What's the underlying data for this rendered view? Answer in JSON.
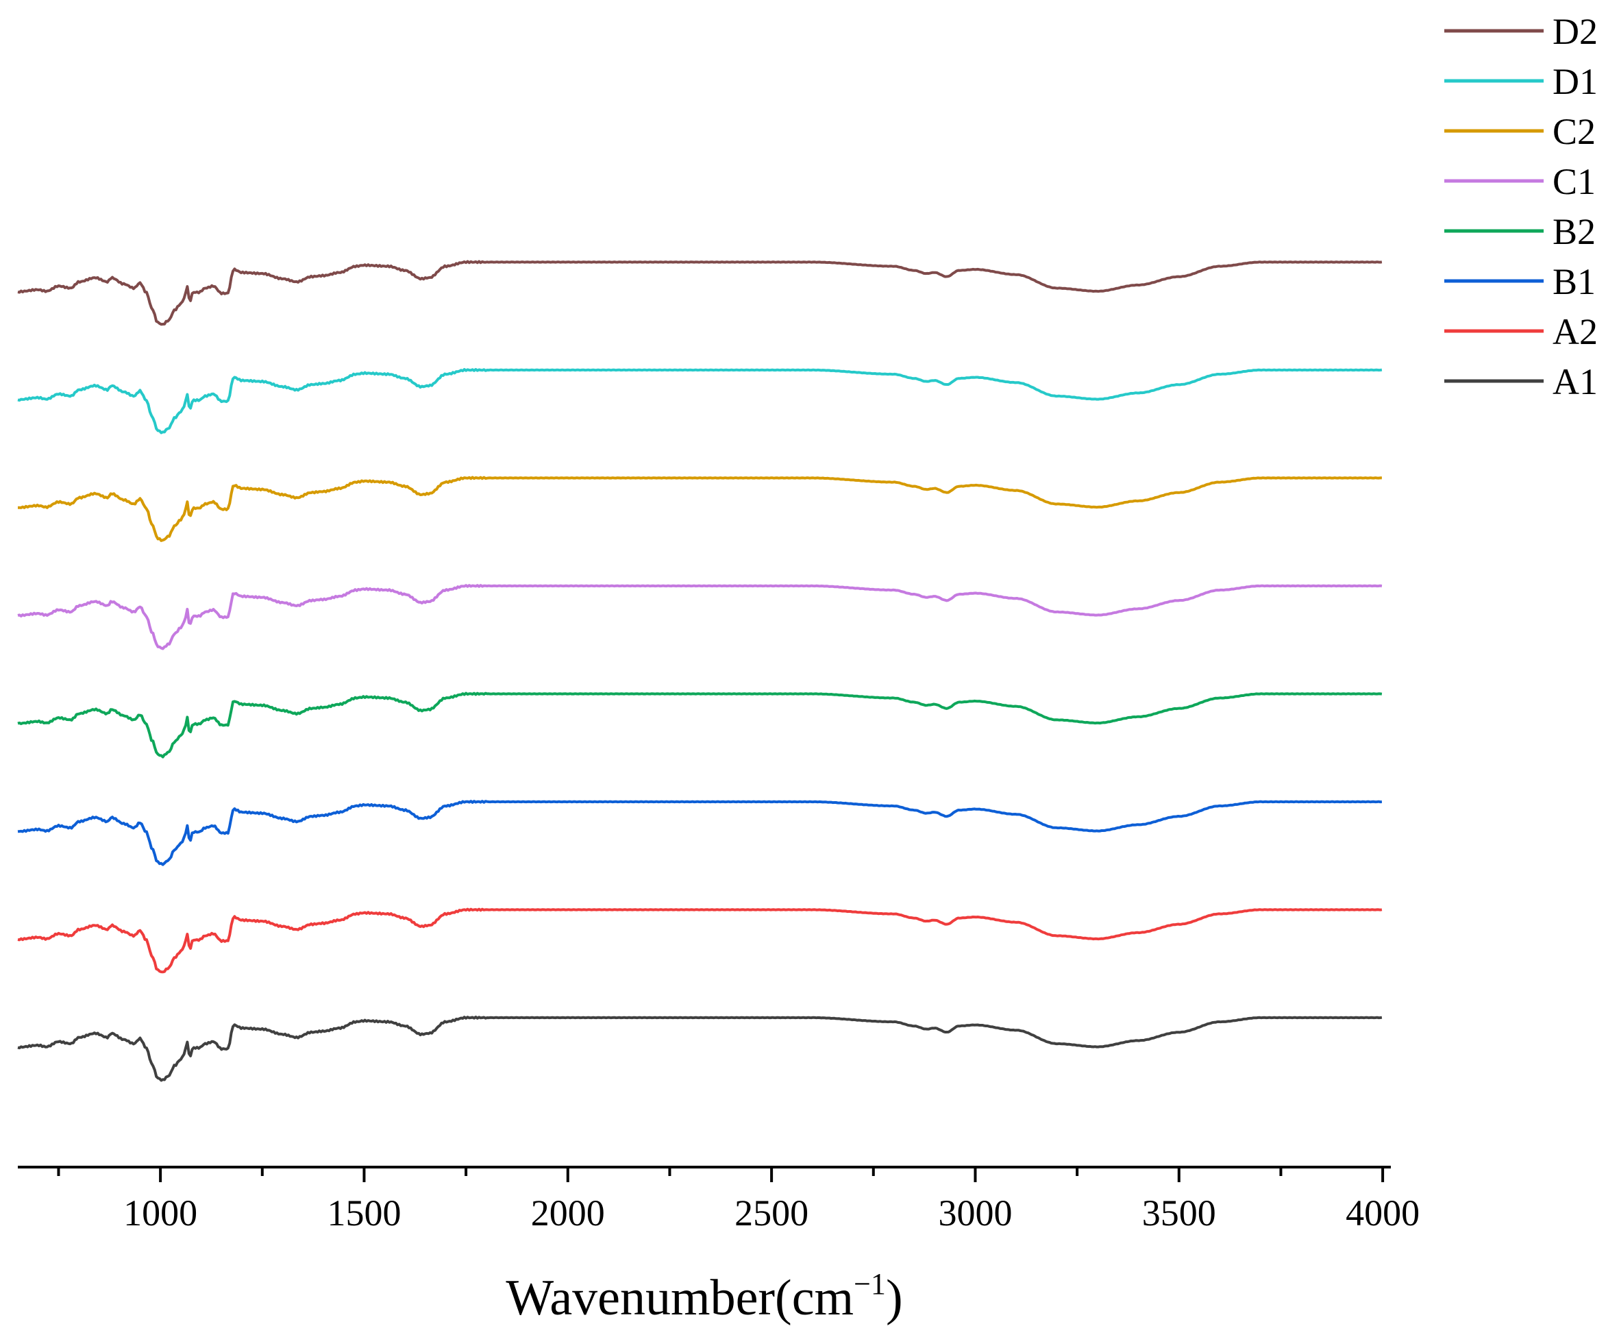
{
  "chart_data": {
    "type": "line",
    "title": "",
    "xlabel": "Wavenumber(cm",
    "xlabel_sup": "−1",
    "xlabel_close": ")",
    "ylabel": "",
    "xlim": [
      650,
      4020
    ],
    "ylim": [
      0,
      1
    ],
    "x_ticks": [
      1000,
      1500,
      2000,
      2500,
      3000,
      3500,
      4000
    ],
    "x_tick_labels": [
      "1000",
      "1500",
      "2000",
      "2500",
      "3000",
      "3500",
      "4000"
    ],
    "x_minor_ticks": [
      750,
      1250,
      1750,
      2250,
      2750,
      3250,
      3750
    ],
    "grid": false,
    "legend_position": "top-right",
    "series": [
      {
        "name": "D2",
        "color": "#7f4a4a"
      },
      {
        "name": "D1",
        "color": "#26c9c9"
      },
      {
        "name": "C2",
        "color": "#d69a00"
      },
      {
        "name": "C1",
        "color": "#c57ae0"
      },
      {
        "name": "B2",
        "color": "#0ea75a"
      },
      {
        "name": "B1",
        "color": "#0d5fd6"
      },
      {
        "name": "A2",
        "color": "#ef3c3c"
      },
      {
        "name": "A1",
        "color": "#404040"
      }
    ],
    "profile": {
      "x": [
        650,
        700,
        720,
        750,
        780,
        800,
        840,
        870,
        880,
        910,
        935,
        950,
        965,
        980,
        993,
        1005,
        1020,
        1035,
        1050,
        1060,
        1065,
        1072,
        1080,
        1095,
        1110,
        1130,
        1150,
        1165,
        1180,
        1200,
        1250,
        1300,
        1335,
        1370,
        1400,
        1440,
        1480,
        1500,
        1560,
        1600,
        1640,
        1660,
        1700,
        1750,
        1800,
        2000,
        2200,
        2400,
        2600,
        2800,
        2850,
        2880,
        2900,
        2930,
        2960,
        3000,
        3100,
        3200,
        3300,
        3400,
        3500,
        3600,
        3700,
        3800,
        3900,
        4000
      ],
      "y": [
        -0.5,
        1.5,
        0,
        5,
        3,
        9,
        13,
        9,
        13,
        7,
        3,
        8,
        -1,
        -17,
        -30,
        -32,
        -28,
        -18,
        -12,
        -6,
        6,
        -10,
        -1,
        -1,
        3,
        5,
        -2,
        -2,
        21,
        18,
        17,
        12,
        9,
        14,
        15,
        18,
        24,
        25,
        24,
        20,
        12,
        13,
        24,
        28,
        28,
        28,
        28,
        28,
        28,
        24,
        20,
        17,
        18,
        14,
        20,
        21,
        16,
        3,
        0,
        6,
        14,
        24,
        28,
        28,
        28,
        28
      ]
    }
  }
}
